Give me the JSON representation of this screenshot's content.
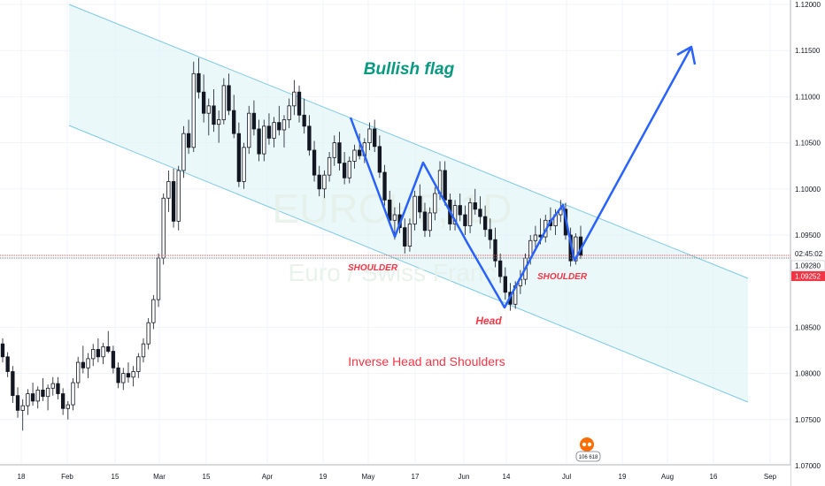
{
  "chart_data": {
    "type": "candlestick",
    "watermark": {
      "symbol": "EURCHF, 1D",
      "name": "Euro / Swiss Franc"
    },
    "x_ticks": [
      "18",
      "Feb",
      "15",
      "Mar",
      "15",
      "Apr",
      "19",
      "May",
      "17",
      "Jun",
      "14",
      "Jul",
      "19",
      "Aug",
      "16",
      "Sep"
    ],
    "y_ticks": [
      "1.12000",
      "1.11500",
      "1.11000",
      "1.10500",
      "1.10000",
      "1.09500",
      "1.08500",
      "1.08000",
      "1.07500",
      "1.07000"
    ],
    "ylim": [
      1.07,
      1.12
    ],
    "price_labels": {
      "countdown": "02:45:02",
      "last_price": "1.09280",
      "bid_price": "1.09252"
    },
    "annotations": {
      "flag_title": "Bullish flag",
      "pattern_title": "Inverse Head and Shoulders",
      "left_shoulder": "SHOULDER",
      "head": "Head",
      "right_shoulder": "SHOULDER"
    },
    "badge_count": "106 618",
    "ohlc": [
      [
        1.0832,
        1.0838,
        1.0812,
        1.0818
      ],
      [
        1.0818,
        1.0823,
        1.0796,
        1.0802
      ],
      [
        1.0802,
        1.0808,
        1.0768,
        1.0776
      ],
      [
        1.0776,
        1.0785,
        1.0752,
        1.076
      ],
      [
        1.076,
        1.0772,
        1.0738,
        1.0765
      ],
      [
        1.0765,
        1.0783,
        1.0755,
        1.0778
      ],
      [
        1.0778,
        1.079,
        1.0765,
        1.077
      ],
      [
        1.077,
        1.0786,
        1.0762,
        1.0782
      ],
      [
        1.0782,
        1.0795,
        1.077,
        1.0775
      ],
      [
        1.0775,
        1.0788,
        1.076,
        1.0784
      ],
      [
        1.0784,
        1.0796,
        1.0776,
        1.0789
      ],
      [
        1.0789,
        1.0796,
        1.0772,
        1.0778
      ],
      [
        1.0778,
        1.0784,
        1.0755,
        1.0762
      ],
      [
        1.0762,
        1.077,
        1.075,
        1.0766
      ],
      [
        1.0766,
        1.0795,
        1.076,
        1.079
      ],
      [
        1.079,
        1.0818,
        1.0784,
        1.0812
      ],
      [
        1.0812,
        1.083,
        1.08,
        1.0806
      ],
      [
        1.0806,
        1.0822,
        1.0795,
        1.0816
      ],
      [
        1.0816,
        1.0832,
        1.0808,
        1.0826
      ],
      [
        1.0826,
        1.0838,
        1.0812,
        1.0818
      ],
      [
        1.0818,
        1.0833,
        1.081,
        1.0829
      ],
      [
        1.0829,
        1.0846,
        1.0822,
        1.0824
      ],
      [
        1.0824,
        1.083,
        1.08,
        1.0806
      ],
      [
        1.0806,
        1.0812,
        1.0784,
        1.079
      ],
      [
        1.079,
        1.0806,
        1.0782,
        1.08
      ],
      [
        1.08,
        1.0812,
        1.079,
        1.0796
      ],
      [
        1.0796,
        1.0808,
        1.0786,
        1.0802
      ],
      [
        1.0802,
        1.0822,
        1.0795,
        1.0818
      ],
      [
        1.0818,
        1.0838,
        1.0812,
        1.0832
      ],
      [
        1.0832,
        1.086,
        1.0826,
        1.0855
      ],
      [
        1.0855,
        1.0885,
        1.0848,
        1.088
      ],
      [
        1.088,
        1.093,
        1.0872,
        1.0925
      ],
      [
        1.0925,
        1.0995,
        1.0918,
        1.099
      ],
      [
        1.099,
        1.102,
        1.0975,
        1.1008
      ],
      [
        1.1008,
        1.1022,
        1.0958,
        1.0965
      ],
      [
        1.0965,
        1.1025,
        1.0955,
        1.102
      ],
      [
        1.102,
        1.1068,
        1.1012,
        1.106
      ],
      [
        1.106,
        1.1075,
        1.1038,
        1.1045
      ],
      [
        1.1045,
        1.1138,
        1.104,
        1.1125
      ],
      [
        1.1125,
        1.1142,
        1.1098,
        1.1105
      ],
      [
        1.1105,
        1.1124,
        1.1072,
        1.1082
      ],
      [
        1.1082,
        1.1098,
        1.1058,
        1.109
      ],
      [
        1.109,
        1.1108,
        1.1062,
        1.107
      ],
      [
        1.107,
        1.1085,
        1.105,
        1.1075
      ],
      [
        1.1075,
        1.112,
        1.107,
        1.1112
      ],
      [
        1.1112,
        1.1125,
        1.108,
        1.1085
      ],
      [
        1.1085,
        1.1102,
        1.1055,
        1.106
      ],
      [
        1.106,
        1.1072,
        1.1002,
        1.1008
      ],
      [
        1.1008,
        1.105,
        1.1,
        1.1045
      ],
      [
        1.1045,
        1.109,
        1.1038,
        1.1082
      ],
      [
        1.1082,
        1.1096,
        1.1058,
        1.1065
      ],
      [
        1.1065,
        1.1075,
        1.103,
        1.1038
      ],
      [
        1.1038,
        1.1075,
        1.103,
        1.1068
      ],
      [
        1.1068,
        1.1082,
        1.1048,
        1.1055
      ],
      [
        1.1055,
        1.1078,
        1.1045,
        1.1072
      ],
      [
        1.1072,
        1.109,
        1.1058,
        1.1064
      ],
      [
        1.1064,
        1.108,
        1.1045,
        1.1075
      ],
      [
        1.1075,
        1.1098,
        1.1066,
        1.109
      ],
      [
        1.109,
        1.1118,
        1.108,
        1.1105
      ],
      [
        1.1105,
        1.1112,
        1.1072,
        1.108
      ],
      [
        1.108,
        1.1098,
        1.106,
        1.1068
      ],
      [
        1.1068,
        1.108,
        1.1036,
        1.1042
      ],
      [
        1.1042,
        1.1052,
        1.1008,
        1.1015
      ],
      [
        1.1015,
        1.1025,
        1.0992,
        1.1
      ],
      [
        1.1,
        1.102,
        1.099,
        1.1015
      ],
      [
        1.1015,
        1.104,
        1.1008,
        1.1034
      ],
      [
        1.1034,
        1.1058,
        1.1025,
        1.105
      ],
      [
        1.105,
        1.1062,
        1.102,
        1.1028
      ],
      [
        1.1028,
        1.104,
        1.1005,
        1.1012
      ],
      [
        1.1012,
        1.1035,
        1.1006,
        1.103
      ],
      [
        1.103,
        1.1048,
        1.1022,
        1.1042
      ],
      [
        1.1042,
        1.106,
        1.1032,
        1.1036
      ],
      [
        1.1036,
        1.1055,
        1.1028,
        1.105
      ],
      [
        1.105,
        1.1072,
        1.1042,
        1.1065
      ],
      [
        1.1065,
        1.1075,
        1.104,
        1.1046
      ],
      [
        1.1046,
        1.1058,
        1.1012,
        1.1018
      ],
      [
        1.1018,
        1.1026,
        1.0982,
        1.0988
      ],
      [
        1.0988,
        1.0998,
        1.096,
        1.0966
      ],
      [
        1.0966,
        1.098,
        1.0945,
        1.0972
      ],
      [
        1.0972,
        1.0985,
        1.0952,
        1.0958
      ],
      [
        1.0958,
        1.0968,
        1.093,
        1.0938
      ],
      [
        1.0938,
        1.0968,
        1.0932,
        1.0962
      ],
      [
        1.0962,
        1.0998,
        1.0955,
        1.0992
      ],
      [
        1.0992,
        1.1005,
        1.0968,
        1.0975
      ],
      [
        1.0975,
        1.0985,
        1.0948,
        1.0955
      ],
      [
        1.0955,
        1.098,
        1.0948,
        1.0974
      ],
      [
        1.0974,
        1.1002,
        1.0966,
        1.0995
      ],
      [
        1.0995,
        1.103,
        1.0988,
        1.102
      ],
      [
        1.102,
        1.103,
        1.0982,
        1.0988
      ],
      [
        1.0988,
        1.0995,
        1.0955,
        1.0962
      ],
      [
        1.0962,
        1.0988,
        1.0955,
        1.0982
      ],
      [
        1.0982,
        1.0995,
        1.0965,
        1.0972
      ],
      [
        1.0972,
        1.0982,
        1.095,
        1.096
      ],
      [
        1.096,
        1.099,
        1.0952,
        1.0985
      ],
      [
        1.0985,
        1.1,
        1.0972,
        1.0978
      ],
      [
        1.0978,
        1.0992,
        1.0962,
        1.097
      ],
      [
        1.097,
        1.0982,
        1.0948,
        1.0956
      ],
      [
        1.0956,
        1.0968,
        1.0935,
        1.0945
      ],
      [
        1.0945,
        1.0958,
        1.0915,
        1.0922
      ],
      [
        1.0922,
        1.093,
        1.0898,
        1.0905
      ],
      [
        1.0905,
        1.0915,
        1.088,
        1.0888
      ],
      [
        1.0888,
        1.0898,
        1.0868,
        1.0875
      ],
      [
        1.0875,
        1.09,
        1.087,
        1.0895
      ],
      [
        1.0895,
        1.0912,
        1.0886,
        1.0902
      ],
      [
        1.0902,
        1.093,
        1.0896,
        1.0925
      ],
      [
        1.0925,
        1.095,
        1.0918,
        1.0944
      ],
      [
        1.0944,
        1.096,
        1.0935,
        1.095
      ],
      [
        1.095,
        1.0968,
        1.094,
        1.0948
      ],
      [
        1.0948,
        1.0972,
        1.0942,
        1.0966
      ],
      [
        1.0966,
        1.098,
        1.0955,
        1.096
      ],
      [
        1.096,
        1.0978,
        1.095,
        1.0972
      ],
      [
        1.0972,
        1.0988,
        1.0964,
        1.0978
      ],
      [
        1.0978,
        1.0985,
        1.0945,
        1.095
      ],
      [
        1.095,
        1.0958,
        1.0916,
        1.0922
      ],
      [
        1.0922,
        1.0952,
        1.0918,
        1.0948
      ],
      [
        1.0948,
        1.096,
        1.0924,
        1.0928
      ]
    ]
  }
}
